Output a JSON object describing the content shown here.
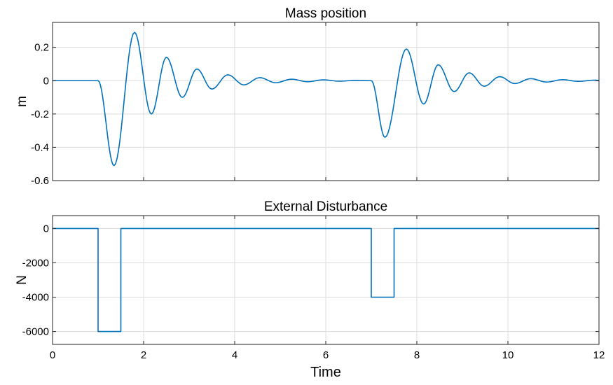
{
  "figure": {
    "xlabel": "Time"
  },
  "chart_data": [
    {
      "type": "line",
      "title": "Mass position",
      "ylabel": "m",
      "xlabel": "",
      "xlim": [
        0,
        12
      ],
      "ylim": [
        -0.6,
        0.35
      ],
      "grid": true,
      "x_ticks": [
        0,
        2,
        4,
        6,
        8,
        10,
        12
      ],
      "y_ticks": [
        0.2,
        0,
        -0.2,
        -0.4,
        -0.6
      ],
      "y_tick_labels": [
        "0.2",
        "0",
        "-0.2",
        "-0.4",
        "-0.6"
      ],
      "color": "#0072BD",
      "series": [
        {
          "x": [
            0,
            1,
            1.35,
            1.8,
            2.17,
            2.5,
            2.85,
            3.17,
            3.5,
            3.85,
            4.2,
            4.55,
            4.9,
            5.25,
            5.6,
            5.95,
            6.3,
            6.65,
            7,
            7.3,
            7.77,
            8.15,
            8.47,
            8.82,
            9.15,
            9.48,
            9.82,
            10.15,
            10.5,
            10.85,
            11.2,
            11.55,
            11.9,
            12
          ],
          "y": [
            0,
            0,
            -0.51,
            0.29,
            -0.2,
            0.14,
            -0.1,
            0.07,
            -0.05,
            0.035,
            -0.025,
            0.018,
            -0.012,
            0.009,
            -0.006,
            0.005,
            -0.003,
            0.002,
            0,
            -0.34,
            0.19,
            -0.14,
            0.095,
            -0.065,
            0.047,
            -0.033,
            0.024,
            -0.017,
            0.012,
            -0.008,
            0.006,
            -0.004,
            0.003,
            0.002
          ]
        }
      ]
    },
    {
      "type": "line",
      "title": "External Disturbance",
      "ylabel": "N",
      "xlabel": "Time",
      "xlim": [
        0,
        12
      ],
      "ylim": [
        -6750,
        750
      ],
      "grid": true,
      "x_ticks": [
        0,
        2,
        4,
        6,
        8,
        10,
        12
      ],
      "x_tick_labels": [
        "0",
        "2",
        "4",
        "6",
        "8",
        "10",
        "12"
      ],
      "y_ticks": [
        0,
        -2000,
        -4000,
        -6000
      ],
      "y_tick_labels": [
        "0",
        "-2000",
        "-4000",
        "-6000"
      ],
      "color": "#0072BD",
      "series": [
        {
          "x": [
            0,
            1,
            1,
            1.5,
            1.5,
            7,
            7,
            7.5,
            7.5,
            12
          ],
          "y": [
            0,
            0,
            -6000,
            -6000,
            0,
            0,
            -4000,
            -4000,
            0,
            0
          ]
        }
      ]
    }
  ]
}
